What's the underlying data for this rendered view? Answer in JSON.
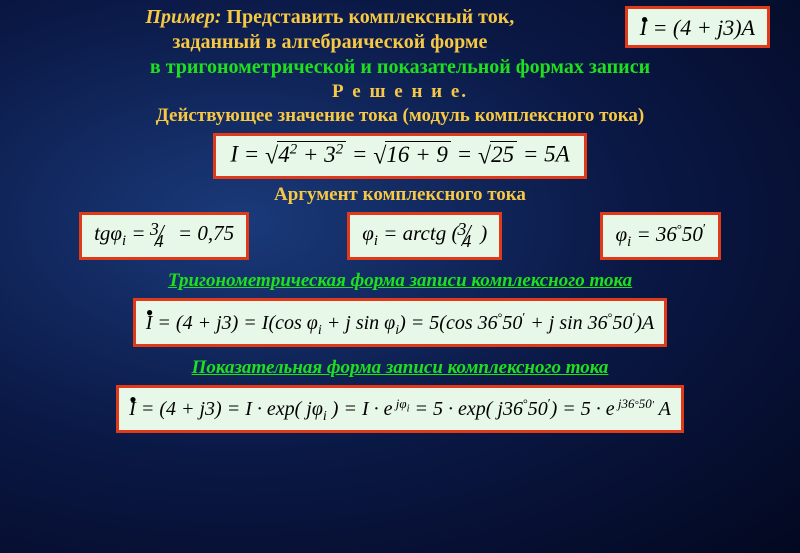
{
  "title": {
    "prefix": "Пример:",
    "line1_rest": " Представить комплексный ток,",
    "line2": "заданный в алгебраической форме"
  },
  "formula_top": {
    "lhs": "I",
    "eq": " = (4 + ",
    "j": "j",
    "rest": "3)A"
  },
  "subtitle_green": "в тригонометрической и показательной формах записи",
  "solution_label": "Р е ш е н и е.",
  "modulus_label": "Действующее значение тока (модуль комплексного тока)",
  "formula_modulus": {
    "lhs": "I = ",
    "sqrt1_a": "4",
    "sqrt1_ap": "2",
    "sqrt1_plus": " + 3",
    "sqrt1_bp": "2",
    "eq2": " = ",
    "sqrt2": "16 + 9",
    "eq3": " = ",
    "sqrt3": "25",
    "rhs": " = 5A"
  },
  "argument_label": "Аргумент комплексного тока",
  "formula_tg": {
    "tg": "tg",
    "phi": "φ",
    "sub": "i",
    "eq": " = ",
    "num": "3",
    "den": "4",
    "rhs": " = 0,75"
  },
  "formula_arctg": {
    "phi": "φ",
    "sub": "i",
    "eq": " = ",
    "fn": "arctg",
    "lp": " (",
    "num": "3",
    "den": "4",
    "rp": ")"
  },
  "formula_angle": {
    "phi": "φ",
    "sub": "i",
    "eq": " = 36",
    "deg": "°",
    "min": "50",
    "prime": "′"
  },
  "section_trig": "Тригонометрическая форма записи комплексного тока",
  "formula_trig": "İ = (4 + j3) = I(cos φᵢ + j sin φᵢ) = 5(cos 36°50′ + j sin 36°50′)A",
  "section_exp": "Показательная форма записи комплексного тока",
  "formula_exp": "İ = (4 + j3) = I · exp( jφᵢ) = I · e^{jφᵢ} = 5 · exp( j36°50′) = 5 · e^{j36°50′} A",
  "colors": {
    "yellow": "#f7c843",
    "green": "#1ee01e",
    "box_bg": "#e8f8e8",
    "box_border": "#e03a1a"
  }
}
